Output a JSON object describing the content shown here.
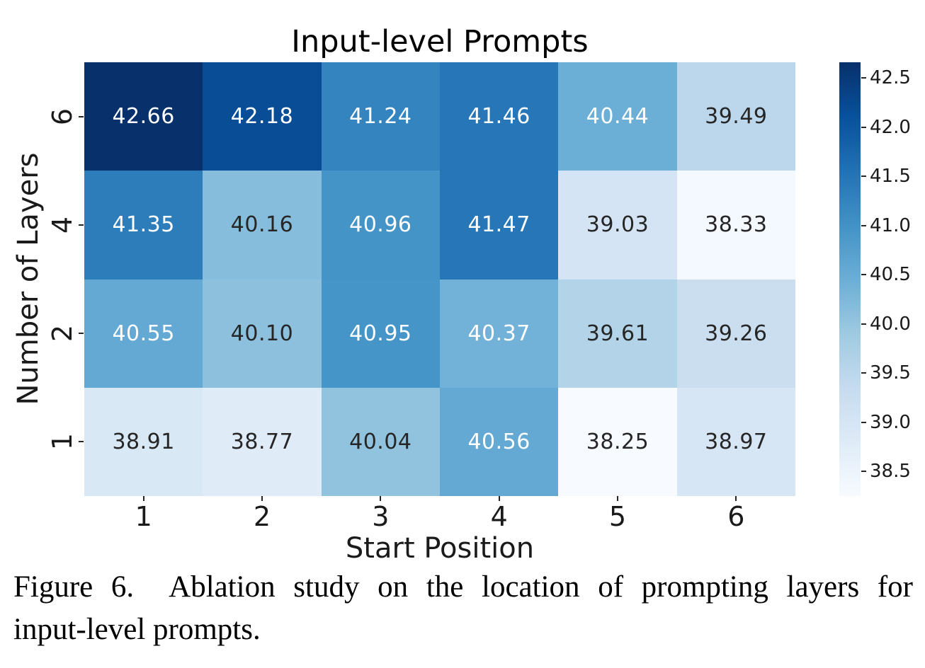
{
  "chart_data": {
    "type": "heatmap",
    "title": "Input-level Prompts",
    "xlabel": "Start Position",
    "ylabel": "Number of Layers",
    "x_categories": [
      "1",
      "2",
      "3",
      "4",
      "5",
      "6"
    ],
    "y_categories": [
      "6",
      "4",
      "2",
      "1"
    ],
    "values": [
      [
        42.66,
        42.18,
        41.24,
        41.46,
        40.44,
        39.49
      ],
      [
        41.35,
        40.16,
        40.96,
        41.47,
        39.03,
        38.33
      ],
      [
        40.55,
        40.1,
        40.95,
        40.37,
        39.61,
        39.26
      ],
      [
        38.91,
        38.77,
        40.04,
        40.56,
        38.25,
        38.97
      ]
    ],
    "value_labels": [
      [
        "42.66",
        "42.18",
        "41.24",
        "41.46",
        "40.44",
        "39.49"
      ],
      [
        "41.35",
        "40.16",
        "40.96",
        "41.47",
        "39.03",
        "38.33"
      ],
      [
        "40.55",
        "40.10",
        "40.95",
        "40.37",
        "39.61",
        "39.26"
      ],
      [
        "38.91",
        "38.77",
        "40.04",
        "40.56",
        "38.25",
        "38.97"
      ]
    ],
    "vmin": 38.25,
    "vmax": 42.66,
    "colormap": "Blues",
    "colorbar_ticks": [
      "38.5",
      "39.0",
      "39.5",
      "40.0",
      "40.5",
      "41.0",
      "41.5",
      "42.0",
      "42.5"
    ],
    "colorbar_position": "right",
    "grid": false,
    "annotations": true
  },
  "caption": {
    "line1": "Figure 6.  Ablation study on the location of prompting layers for",
    "line2": "input-level prompts."
  },
  "colors": {
    "colormap_stops": [
      "#f7fbff",
      "#deebf7",
      "#c6dbef",
      "#9ecae1",
      "#6baed6",
      "#4292c6",
      "#2171b5",
      "#08519c",
      "#08306b"
    ],
    "annotation_light": "#ffffff",
    "annotation_dark": "#262626",
    "tick_color": "#262626",
    "background": "#ffffff"
  }
}
